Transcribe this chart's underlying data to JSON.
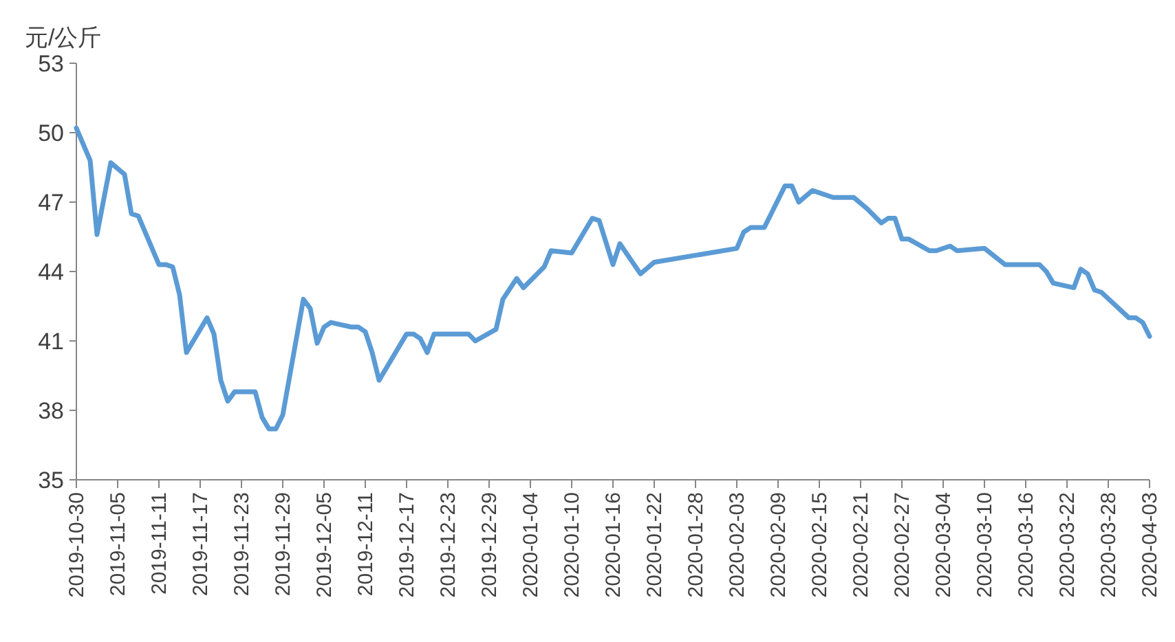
{
  "chart_data": {
    "type": "line",
    "ylabel": "元/公斤",
    "x": [
      "2019-10-30",
      "2019-11-01",
      "2019-11-02",
      "2019-11-04",
      "2019-11-06",
      "2019-11-07",
      "2019-11-08",
      "2019-11-11",
      "2019-11-12",
      "2019-11-13",
      "2019-11-14",
      "2019-11-15",
      "2019-11-18",
      "2019-11-19",
      "2019-11-20",
      "2019-11-21",
      "2019-11-22",
      "2019-11-25",
      "2019-11-26",
      "2019-11-27",
      "2019-11-28",
      "2019-11-29",
      "2019-12-02",
      "2019-12-03",
      "2019-12-04",
      "2019-12-05",
      "2019-12-06",
      "2019-12-09",
      "2019-12-10",
      "2019-12-11",
      "2019-12-12",
      "2019-12-13",
      "2019-12-17",
      "2019-12-18",
      "2019-12-19",
      "2019-12-20",
      "2019-12-21",
      "2019-12-26",
      "2019-12-27",
      "2019-12-30",
      "2019-12-31",
      "2020-01-02",
      "2020-01-03",
      "2020-01-06",
      "2020-01-07",
      "2020-01-10",
      "2020-01-13",
      "2020-01-14",
      "2020-01-16",
      "2020-01-17",
      "2020-01-20",
      "2020-01-22",
      "2020-02-03",
      "2020-02-04",
      "2020-02-05",
      "2020-02-07",
      "2020-02-10",
      "2020-02-11",
      "2020-02-12",
      "2020-02-14",
      "2020-02-17",
      "2020-02-20",
      "2020-02-22",
      "2020-02-24",
      "2020-02-25",
      "2020-02-26",
      "2020-02-27",
      "2020-02-28",
      "2020-03-02",
      "2020-03-03",
      "2020-03-05",
      "2020-03-06",
      "2020-03-10",
      "2020-03-13",
      "2020-03-18",
      "2020-03-19",
      "2020-03-20",
      "2020-03-23",
      "2020-03-24",
      "2020-03-25",
      "2020-03-26",
      "2020-03-27",
      "2020-03-31",
      "2020-04-01",
      "2020-04-02",
      "2020-04-03"
    ],
    "series": [
      {
        "color": "#5b9bd5",
        "values": [
          50.2,
          48.8,
          45.6,
          48.7,
          48.2,
          46.5,
          46.4,
          44.3,
          44.3,
          44.2,
          43.0,
          40.5,
          42.0,
          41.3,
          39.3,
          38.4,
          38.8,
          38.8,
          37.7,
          37.2,
          37.2,
          37.8,
          42.8,
          42.4,
          40.9,
          41.6,
          41.8,
          41.6,
          41.6,
          41.4,
          40.5,
          39.3,
          41.3,
          41.3,
          41.1,
          40.5,
          41.3,
          41.3,
          41.0,
          41.5,
          42.8,
          43.7,
          43.3,
          44.2,
          44.9,
          44.8,
          46.3,
          46.2,
          44.3,
          45.2,
          43.9,
          44.4,
          45.0,
          45.7,
          45.9,
          45.9,
          47.7,
          47.7,
          47.0,
          47.5,
          47.2,
          47.2,
          46.7,
          46.1,
          46.3,
          46.3,
          45.4,
          45.4,
          44.9,
          44.9,
          45.1,
          44.9,
          45.0,
          44.3,
          44.3,
          44.0,
          43.5,
          43.3,
          44.1,
          43.9,
          43.2,
          43.1,
          42.0,
          42.0,
          41.8,
          41.2
        ]
      }
    ],
    "xlim": [
      "2019-10-30",
      "2020-04-03"
    ],
    "xticks": [
      "2019-10-30",
      "2019-11-05",
      "2019-11-11",
      "2019-11-17",
      "2019-11-23",
      "2019-11-29",
      "2019-12-05",
      "2019-12-11",
      "2019-12-17",
      "2019-12-23",
      "2019-12-29",
      "2020-01-04",
      "2020-01-10",
      "2020-01-16",
      "2020-01-22",
      "2020-01-28",
      "2020-02-03",
      "2020-02-09",
      "2020-02-15",
      "2020-02-21",
      "2020-02-27",
      "2020-03-04",
      "2020-03-10",
      "2020-03-16",
      "2020-03-22",
      "2020-03-28",
      "2020-04-03"
    ],
    "ylim": [
      35,
      53
    ],
    "yticks": [
      35,
      38,
      41,
      44,
      47,
      50,
      53
    ],
    "grid": false,
    "marker": "none",
    "line_style": "solid"
  }
}
